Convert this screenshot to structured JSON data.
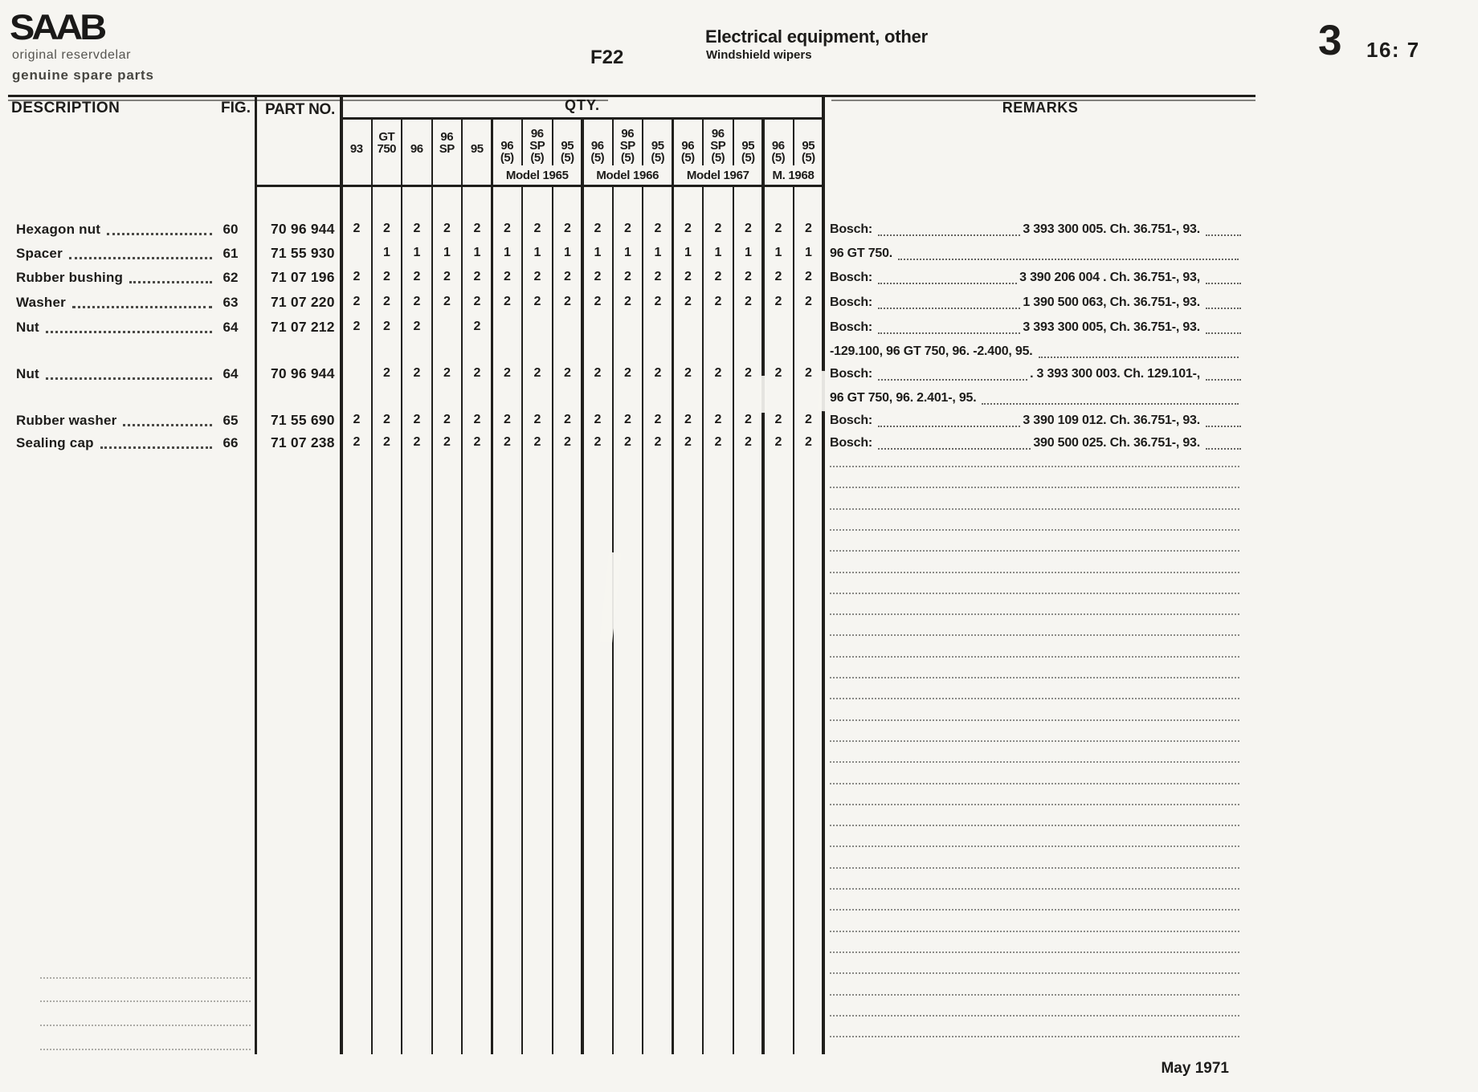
{
  "page_header": {
    "logo_text": "SAAB",
    "logo_sub_1": "original reservdelar",
    "logo_sub_2": "genuine spare parts",
    "figure_ref": "F22",
    "section_title": "Electrical equipment, other",
    "section_subtitle": "Windshield wipers",
    "page_section_number": "3",
    "page_number": "16: 7"
  },
  "table": {
    "headers": {
      "description": "DESCRIPTION",
      "fig": "FIG.",
      "part_no": "PART NO.",
      "qty": "QTY.",
      "remarks": "REMARKS"
    },
    "qty_columns": [
      [
        "93"
      ],
      [
        "GT",
        "750"
      ],
      [
        "96"
      ],
      [
        "96",
        "SP"
      ],
      [
        "95"
      ],
      [
        "96",
        "(5)"
      ],
      [
        "96",
        "SP",
        "(5)"
      ],
      [
        "95",
        "(5)"
      ],
      [
        "96",
        "(5)"
      ],
      [
        "96",
        "SP",
        "(5)"
      ],
      [
        "95",
        "(5)"
      ],
      [
        "96",
        "(5)"
      ],
      [
        "96",
        "SP",
        "(5)"
      ],
      [
        "95",
        "(5)"
      ],
      [
        "96",
        "(5)"
      ],
      [
        "95",
        "(5)"
      ]
    ],
    "group_labels": [
      "Model 1965",
      "Model 1966",
      "Model 1967",
      "M. 1968"
    ],
    "rows": [
      {
        "description": "Hexagon nut",
        "fig": "60",
        "part_no": "70 96 944",
        "qty": [
          "2",
          "2",
          "2",
          "2",
          "2",
          "2",
          "2",
          "2",
          "2",
          "2",
          "2",
          "2",
          "2",
          "2",
          "2",
          "2"
        ],
        "remark_label": "Bosch:",
        "remark_value": "3 393 300 005.  Ch. 36.751-,  93."
      },
      {
        "description": "Spacer",
        "fig": "61",
        "part_no": "71 55 930",
        "qty": [
          "",
          "1",
          "1",
          "1",
          "1",
          "1",
          "1",
          "1",
          "1",
          "1",
          "1",
          "1",
          "1",
          "1",
          "1",
          "1"
        ],
        "remark_label": "96 GT 750.",
        "remark_value": ""
      },
      {
        "description": "Rubber bushing",
        "fig": "62",
        "part_no": "71 07 196",
        "qty": [
          "2",
          "2",
          "2",
          "2",
          "2",
          "2",
          "2",
          "2",
          "2",
          "2",
          "2",
          "2",
          "2",
          "2",
          "2",
          "2"
        ],
        "remark_label": "Bosch:",
        "remark_value": "3 390 206 004 .  Ch. 36.751-,  93,"
      },
      {
        "description": "Washer",
        "fig": "63",
        "part_no": "71 07 220",
        "qty": [
          "2",
          "2",
          "2",
          "2",
          "2",
          "2",
          "2",
          "2",
          "2",
          "2",
          "2",
          "2",
          "2",
          "2",
          "2",
          "2"
        ],
        "remark_label": "Bosch:",
        "remark_value": "1 390 500 063,  Ch. 36.751-,  93."
      },
      {
        "description": "Nut",
        "fig": "64",
        "part_no": "71 07 212",
        "qty": [
          "2",
          "2",
          "2",
          "",
          "2",
          "",
          "",
          "",
          "",
          "",
          "",
          "",
          "",
          "",
          "",
          ""
        ],
        "remark_label": "Bosch:",
        "remark_value": "3 393 300 005,  Ch. 36.751-,  93."
      },
      {
        "description": "",
        "fig": "",
        "part_no": "",
        "qty": [],
        "remark_label": "-129.100, 96 GT 750, 96.  -2.400, 95.",
        "remark_value": ""
      },
      {
        "description": "Nut",
        "fig": "64",
        "part_no": "70 96 944",
        "qty": [
          "",
          "2",
          "2",
          "2",
          "2",
          "2",
          "2",
          "2",
          "2",
          "2",
          "2",
          "2",
          "2",
          "2",
          "2",
          "2"
        ],
        "remark_label": "Bosch:",
        "remark_value": ". 3 393 300 003.  Ch. 129.101-,"
      },
      {
        "description": "",
        "fig": "",
        "part_no": "",
        "qty": [],
        "remark_label": "96 GT 750, 96.  2.401-, 95.",
        "remark_value": ""
      },
      {
        "description": "Rubber washer",
        "fig": "65",
        "part_no": "71 55 690",
        "qty": [
          "2",
          "2",
          "2",
          "2",
          "2",
          "2",
          "2",
          "2",
          "2",
          "2",
          "2",
          "2",
          "2",
          "2",
          "2",
          "2"
        ],
        "remark_label": "Bosch:",
        "remark_value": "3 390 109 012.   Ch. 36.751-,  93."
      },
      {
        "description": "Sealing cap",
        "fig": "66",
        "part_no": "71 07 238",
        "qty": [
          "2",
          "2",
          "2",
          "2",
          "2",
          "2",
          "2",
          "2",
          "2",
          "2",
          "2",
          "2",
          "2",
          "2",
          "2",
          "2"
        ],
        "remark_label": "Bosch:",
        "remark_value": "390 500 025.   Ch. 36.751-,  93."
      }
    ]
  },
  "footer": {
    "date": "May 1971"
  },
  "colors": {
    "paper": "#f6f5f1",
    "ink": "#1d1c1a",
    "ink_soft": "#55544f"
  }
}
